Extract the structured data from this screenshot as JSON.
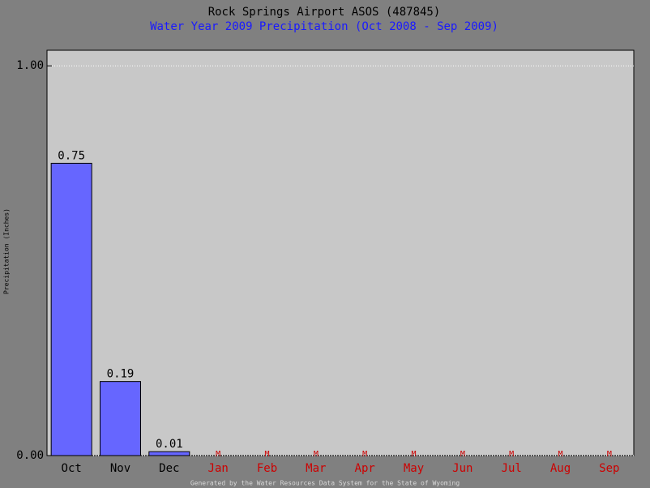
{
  "chart_data": {
    "type": "bar",
    "title": "Rock Springs Airport ASOS (487845)",
    "subtitle": "Water Year 2009 Precipitation (Oct 2008 - Sep 2009)",
    "y_label": "Precipitation (Inches)",
    "footer": "Generated by the Water Resources Data System for the State of Wyoming",
    "categories": [
      "Oct",
      "Nov",
      "Dec",
      "Jan",
      "Feb",
      "Mar",
      "Apr",
      "May",
      "Jun",
      "Jul",
      "Aug",
      "Sep"
    ],
    "values": [
      0.75,
      0.19,
      0.01,
      null,
      null,
      null,
      null,
      null,
      null,
      null,
      null,
      null
    ],
    "value_labels": [
      "0.75",
      "0.19",
      "0.01",
      "M",
      "M",
      "M",
      "M",
      "M",
      "M",
      "M",
      "M",
      "M"
    ],
    "color": "#6666ff",
    "missing_color": "#cc0000",
    "ylim": [
      0,
      1.04
    ],
    "yticks": [
      {
        "value": 0,
        "label": "0.00"
      },
      {
        "value": 1,
        "label": "1.00"
      }
    ],
    "grid": true
  }
}
